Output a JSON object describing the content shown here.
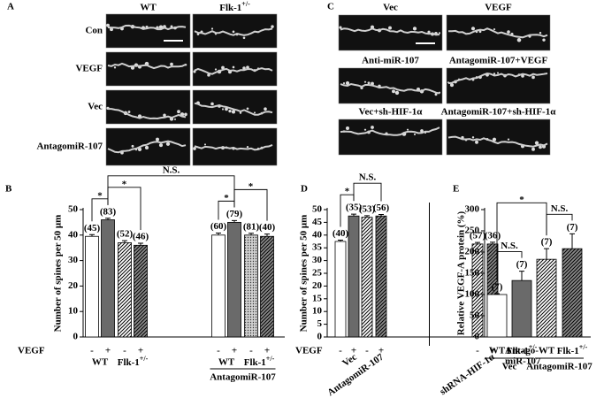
{
  "panels": {
    "A": {
      "letter": "A",
      "columns": [
        "WT",
        {
          "text": "Flk-1",
          "sup": "+/-"
        }
      ],
      "rows": [
        "Con",
        "VEGF",
        "Vec",
        "AntagomiR-107"
      ]
    },
    "C": {
      "letter": "C",
      "labels": [
        "Vec",
        "VEGF",
        "Anti-miR-107",
        "AntagomiR-107+VEGF",
        "Vec+sh-HIF-1α",
        "AntagomiR-107+sh-HIF-1α"
      ]
    }
  },
  "chart_data": [
    {
      "type": "bar",
      "panel": "B",
      "y_label": "Number of spines per 50 μm",
      "ylim": [
        0,
        50
      ],
      "yticks": [
        0,
        10,
        20,
        30,
        40,
        50
      ],
      "x_title": "VEGF",
      "categories": [
        "-",
        "+",
        "-",
        "+",
        "-",
        "+",
        "-",
        "+"
      ],
      "values": [
        39.5,
        46,
        37,
        36,
        40,
        45,
        40,
        39.5
      ],
      "errors": [
        0.7,
        0.6,
        0.8,
        0.8,
        0.8,
        0.7,
        0.7,
        0.9
      ],
      "n_labels": [
        "(45)",
        "(83)",
        "(52)",
        "(46)",
        "(60)",
        "(79)",
        "(81)",
        "(40)"
      ],
      "patterns": [
        "white",
        "gray",
        "hatch",
        "darkhatch",
        "white",
        "gray",
        "dots",
        "darkhatch"
      ],
      "groups": [
        {
          "label": "WT",
          "from": 0,
          "to": 1
        },
        {
          "label": {
            "text": "Flk-1",
            "sup": "+/-"
          },
          "from": 2,
          "to": 3
        },
        {
          "label": "WT",
          "from": 4,
          "to": 5
        },
        {
          "label": {
            "text": "Flk-1",
            "sup": "+/-"
          },
          "from": 6,
          "to": 7
        }
      ],
      "supergroups": [
        {
          "label": "AntagomiR-107",
          "from": 4,
          "to": 7
        }
      ],
      "comparisons": [
        {
          "from": 0,
          "to": 1,
          "label": "*"
        },
        {
          "from": 1,
          "to": 3,
          "label": "*"
        },
        {
          "from": 4,
          "to": 5,
          "label": "*"
        },
        {
          "from": 5,
          "to": 7,
          "label": "*"
        },
        {
          "from": 1,
          "to": 5,
          "label": "N.S."
        }
      ]
    },
    {
      "type": "bar",
      "panel": "D",
      "y_label": "Number of spines per 50 μm",
      "ylim": [
        0,
        50
      ],
      "yticks": [
        0,
        5,
        10,
        15,
        20,
        25,
        30,
        35,
        40,
        45,
        50
      ],
      "x_title": "VEGF",
      "right_label": [
        "Antago-",
        "miR-107"
      ],
      "categories": [
        "-",
        "+",
        "-",
        "+",
        "-",
        "+"
      ],
      "values": [
        37.5,
        47.5,
        47,
        47.5,
        36.5,
        36.5
      ],
      "errors": [
        0.5,
        0.7,
        0.6,
        0.6,
        0.6,
        0.7
      ],
      "n_labels": [
        "(40)",
        "(35)",
        "(53)",
        "(56)",
        "(57)",
        "(36)"
      ],
      "patterns": [
        "white",
        "gray",
        "hatch",
        "darkhatch",
        "hatch",
        "darkhatch"
      ],
      "rotated_groups": [
        {
          "label": "Vec",
          "from": 0,
          "to": 1
        },
        {
          "label": "AntagomiR-107",
          "from": 2,
          "to": 3
        },
        {
          "label": "shRNA-HIF-1α",
          "from": 4,
          "to": 5
        }
      ],
      "divider_after": 3,
      "comparisons": [
        {
          "from": 0,
          "to": 1,
          "label": "*"
        },
        {
          "from": 1,
          "to": 3,
          "label": "N.S."
        }
      ]
    },
    {
      "type": "bar",
      "panel": "E",
      "y_label": "Relative VEGF-A protein (%)",
      "ylim": [
        0,
        300
      ],
      "yticks": [
        0,
        50,
        100,
        150,
        200,
        250,
        300
      ],
      "categories": [
        "WT",
        {
          "text": "Flk-1",
          "sup": "+/-"
        },
        "WT",
        {
          "text": "Flk-1",
          "sup": "+/-"
        }
      ],
      "values": [
        100,
        133,
        183,
        208
      ],
      "errors": [
        2,
        22,
        25,
        35
      ],
      "n_labels": [
        "(7)",
        "(7)",
        "(7)",
        "(7)"
      ],
      "patterns": [
        "white",
        "gray",
        "hatch",
        "darkhatch"
      ],
      "supergroups": [
        {
          "label": "Vec",
          "from": 0,
          "to": 1
        },
        {
          "label": "AntagomiR-107",
          "from": 2,
          "to": 3
        }
      ],
      "comparisons": [
        {
          "from": 0,
          "to": 1,
          "label": "N.S."
        },
        {
          "from": 2,
          "to": 3,
          "label": "N.S."
        },
        {
          "from": 0,
          "to": 2,
          "label": "*"
        }
      ]
    }
  ]
}
